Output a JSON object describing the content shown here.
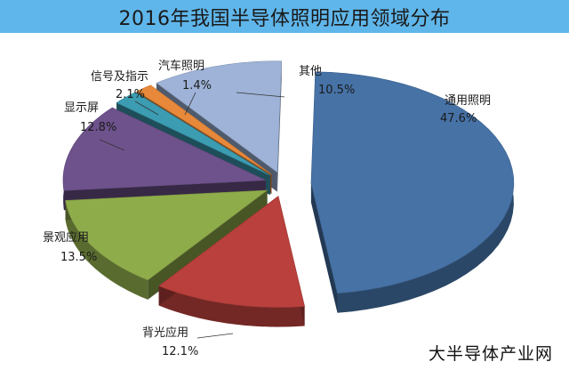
{
  "title": "2016年我国半导体照明应用领域分布",
  "watermark": "大半导体产业网",
  "chart_data": {
    "type": "pie",
    "title": "2016年我国半导体照明应用领域分布",
    "slices": [
      {
        "label": "通用照明",
        "value": 47.6,
        "value_label": "47.6%",
        "color": "#4672a6"
      },
      {
        "label": "背光应用",
        "value": 12.1,
        "value_label": "12.1%",
        "color": "#b9403c"
      },
      {
        "label": "景观应用",
        "value": 13.5,
        "value_label": "13.5%",
        "color": "#8fac4b"
      },
      {
        "label": "显示屏",
        "value": 12.8,
        "value_label": "12.8%",
        "color": "#6e528c"
      },
      {
        "label": "信号及指示",
        "value": 2.1,
        "value_label": "2.1%",
        "color": "#3b9cb2"
      },
      {
        "label": "汽车照明",
        "value": 1.4,
        "value_label": "1.4%",
        "color": "#e7883a"
      },
      {
        "label": "其他",
        "value": 10.5,
        "value_label": "10.5%",
        "color": "#9eb3d7"
      }
    ]
  }
}
